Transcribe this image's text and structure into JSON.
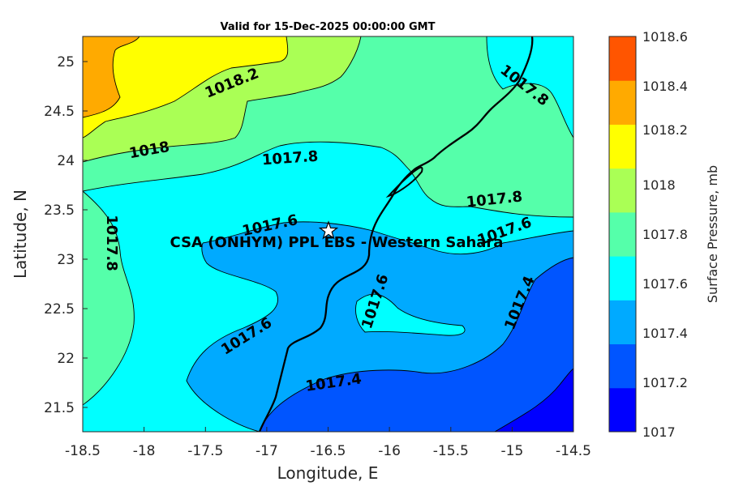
{
  "title": "Valid for 15-Dec-2025 00:00:00 GMT",
  "x_axis": {
    "label": "Longitude, E",
    "ticks": [
      "-18.5",
      "-18",
      "-17.5",
      "-17",
      "-16.5",
      "-16",
      "-15.5",
      "-15",
      "-14.5"
    ]
  },
  "y_axis": {
    "label": "Latitude, N",
    "ticks": [
      "25",
      "24.5",
      "24",
      "23.5",
      "23",
      "22.5",
      "22",
      "21.5"
    ]
  },
  "colorbar": {
    "label": "Surface Pressure, mb",
    "ticks": [
      "1018.6",
      "1018.4",
      "1018.2",
      "1018",
      "1017.8",
      "1017.6",
      "1017.4",
      "1017.2",
      "1017"
    ],
    "colors": [
      "#0000ff",
      "#0055ff",
      "#00aaff",
      "#00ffff",
      "#55ffaa",
      "#aaff55",
      "#ffff00",
      "#ffaa00",
      "#ff5500"
    ]
  },
  "contour_labels": [
    {
      "text": "1018.2"
    },
    {
      "text": "1018"
    },
    {
      "text": "1017.8"
    },
    {
      "text": "1017.8"
    },
    {
      "text": "1017.8"
    },
    {
      "text": "1017.8"
    },
    {
      "text": "1017.6"
    },
    {
      "text": "1017.6"
    },
    {
      "text": "1017.6"
    },
    {
      "text": "1017.6"
    },
    {
      "text": "1017.4"
    },
    {
      "text": "1017.4"
    }
  ],
  "site": {
    "name": "CSA (ONHYM) PPL EBS - Western Sahara",
    "marker": "star-icon"
  },
  "chart_data": {
    "type": "heatmap",
    "title": "Valid for 15-Dec-2025 00:00:00 GMT",
    "xlabel": "Longitude, E",
    "ylabel": "Latitude, N",
    "xlim": [
      -18.5,
      -14.5
    ],
    "ylim": [
      21.25,
      25.25
    ],
    "levels": [
      1017,
      1017.2,
      1017.4,
      1017.6,
      1017.8,
      1018,
      1018.2,
      1018.4,
      1018.6
    ],
    "colorbar_label": "Surface Pressure, mb",
    "site": {
      "lon": -16.5,
      "lat": 23.3
    }
  }
}
